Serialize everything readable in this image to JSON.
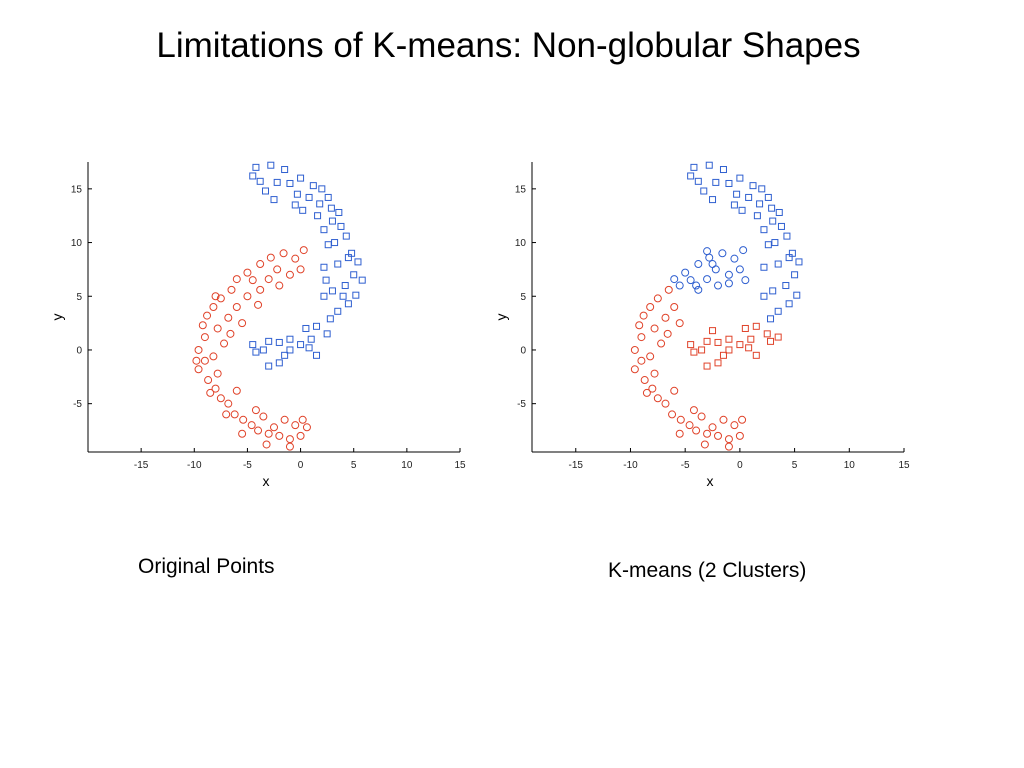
{
  "slide": {
    "title": "Limitations of K-means: Non-globular Shapes",
    "caption_left": "Original Points",
    "caption_right": "K-means (2 Clusters)"
  },
  "colors": {
    "cluster_a": "#2f5fd0",
    "cluster_b": "#e0432a",
    "axis": "#000000"
  },
  "chart_data": [
    {
      "type": "scatter",
      "title": "",
      "xlabel": "x",
      "ylabel": "y",
      "xlim": [
        -20,
        15
      ],
      "ylim": [
        -9.5,
        17.5
      ],
      "xticks": [
        -15,
        -10,
        -5,
        0,
        5,
        10,
        15
      ],
      "yticks": [
        -5,
        0,
        5,
        10,
        15
      ],
      "grid": false,
      "legend": "none",
      "series": [
        {
          "marker": "square",
          "color": "#2f5fd0",
          "values": [
            [
              -4.2,
              17.0
            ],
            [
              -2.8,
              17.2
            ],
            [
              -1.5,
              16.8
            ],
            [
              -3.8,
              15.7
            ],
            [
              -3.3,
              14.8
            ],
            [
              -2.2,
              15.6
            ],
            [
              -1.0,
              15.5
            ],
            [
              -4.5,
              16.2
            ],
            [
              0.0,
              16.0
            ],
            [
              1.2,
              15.3
            ],
            [
              2.0,
              15.0
            ],
            [
              -0.3,
              14.5
            ],
            [
              0.8,
              14.2
            ],
            [
              1.8,
              13.6
            ],
            [
              2.6,
              14.2
            ],
            [
              2.9,
              13.2
            ],
            [
              0.2,
              13.0
            ],
            [
              3.0,
              12.0
            ],
            [
              3.8,
              11.5
            ],
            [
              2.2,
              11.2
            ],
            [
              4.3,
              10.6
            ],
            [
              3.2,
              10.0
            ],
            [
              2.6,
              9.8
            ],
            [
              4.8,
              9.0
            ],
            [
              5.4,
              8.2
            ],
            [
              3.5,
              8.0
            ],
            [
              2.2,
              7.7
            ],
            [
              5.0,
              7.0
            ],
            [
              4.2,
              6.0
            ],
            [
              3.0,
              5.5
            ],
            [
              5.2,
              5.1
            ],
            [
              2.2,
              5.0
            ],
            [
              4.5,
              4.3
            ],
            [
              3.5,
              3.6
            ],
            [
              2.8,
              2.9
            ],
            [
              1.5,
              2.2
            ],
            [
              2.5,
              1.5
            ],
            [
              1.0,
              1.0
            ],
            [
              0.0,
              0.5
            ],
            [
              -1.0,
              1.0
            ],
            [
              -2.0,
              0.7
            ],
            [
              -3.0,
              0.8
            ],
            [
              -4.2,
              -0.2
            ],
            [
              -2.0,
              -1.2
            ],
            [
              -3.0,
              -1.5
            ],
            [
              -1.0,
              0.0
            ],
            [
              0.8,
              0.2
            ],
            [
              -4.5,
              0.5
            ],
            [
              -3.5,
              0.0
            ],
            [
              1.5,
              -0.5
            ],
            [
              4.0,
              5.0
            ],
            [
              5.8,
              6.5
            ],
            [
              -0.5,
              13.5
            ],
            [
              1.6,
              12.5
            ],
            [
              -2.5,
              14.0
            ],
            [
              3.6,
              12.8
            ],
            [
              4.5,
              8.6
            ],
            [
              2.4,
              6.5
            ],
            [
              0.5,
              2.0
            ],
            [
              -1.5,
              -0.5
            ]
          ]
        },
        {
          "marker": "circle",
          "color": "#e0432a",
          "values": [
            [
              0.3,
              9.3
            ],
            [
              -0.5,
              8.5
            ],
            [
              -1.6,
              9.0
            ],
            [
              -2.8,
              8.6
            ],
            [
              -3.8,
              8.0
            ],
            [
              -5.0,
              7.2
            ],
            [
              -6.0,
              6.6
            ],
            [
              -6.5,
              5.6
            ],
            [
              -7.5,
              4.8
            ],
            [
              -8.2,
              4.0
            ],
            [
              -8.8,
              3.2
            ],
            [
              -9.2,
              2.3
            ],
            [
              -9.0,
              1.2
            ],
            [
              -9.6,
              0.0
            ],
            [
              -9.0,
              -1.0
            ],
            [
              -9.6,
              -1.8
            ],
            [
              -8.7,
              -2.8
            ],
            [
              -8.0,
              -3.6
            ],
            [
              -7.5,
              -4.5
            ],
            [
              -6.8,
              -5.0
            ],
            [
              -6.2,
              -6.0
            ],
            [
              -5.4,
              -6.5
            ],
            [
              -4.6,
              -7.0
            ],
            [
              -4.0,
              -7.5
            ],
            [
              -3.0,
              -7.8
            ],
            [
              -2.0,
              -8.0
            ],
            [
              -1.0,
              -8.3
            ],
            [
              0.0,
              -8.0
            ],
            [
              -0.5,
              -7.0
            ],
            [
              -1.5,
              -6.5
            ],
            [
              -3.5,
              -6.2
            ],
            [
              -2.5,
              -7.2
            ],
            [
              0.2,
              -6.5
            ],
            [
              -4.2,
              -5.6
            ],
            [
              -6.0,
              -3.8
            ],
            [
              -7.8,
              -2.2
            ],
            [
              -8.2,
              -0.6
            ],
            [
              -7.2,
              0.6
            ],
            [
              -7.8,
              2.0
            ],
            [
              -6.8,
              3.0
            ],
            [
              -6.0,
              4.0
            ],
            [
              -5.0,
              5.0
            ],
            [
              -3.8,
              5.6
            ],
            [
              -3.0,
              6.6
            ],
            [
              -2.2,
              7.5
            ],
            [
              -1.0,
              7.0
            ],
            [
              -4.5,
              6.5
            ],
            [
              -5.5,
              2.5
            ],
            [
              -6.6,
              1.5
            ],
            [
              -4.0,
              4.2
            ],
            [
              -2.0,
              6.0
            ],
            [
              0.0,
              7.5
            ],
            [
              -8.5,
              -4.0
            ],
            [
              -5.5,
              -7.8
            ],
            [
              -1.0,
              -9.0
            ],
            [
              -3.2,
              -8.8
            ],
            [
              -7.0,
              -6.0
            ],
            [
              -9.8,
              -1.0
            ],
            [
              -8.0,
              5.0
            ],
            [
              0.6,
              -7.2
            ]
          ]
        }
      ]
    },
    {
      "type": "scatter",
      "title": "",
      "xlabel": "x",
      "ylabel": "y",
      "xlim": [
        -19,
        15
      ],
      "ylim": [
        -9.5,
        17.5
      ],
      "xticks": [
        -15,
        -10,
        -5,
        0,
        5,
        10,
        15
      ],
      "yticks": [
        -5,
        0,
        5,
        10,
        15
      ],
      "grid": false,
      "legend": "none",
      "series": [
        {
          "marker": "square",
          "color": "#2f5fd0",
          "values": [
            [
              -4.2,
              17.0
            ],
            [
              -2.8,
              17.2
            ],
            [
              -1.5,
              16.8
            ],
            [
              -3.8,
              15.7
            ],
            [
              -3.3,
              14.8
            ],
            [
              -2.2,
              15.6
            ],
            [
              -1.0,
              15.5
            ],
            [
              -4.5,
              16.2
            ],
            [
              0.0,
              16.0
            ],
            [
              1.2,
              15.3
            ],
            [
              2.0,
              15.0
            ],
            [
              -0.3,
              14.5
            ],
            [
              0.8,
              14.2
            ],
            [
              1.8,
              13.6
            ],
            [
              2.6,
              14.2
            ],
            [
              2.9,
              13.2
            ],
            [
              0.2,
              13.0
            ],
            [
              3.0,
              12.0
            ],
            [
              3.8,
              11.5
            ],
            [
              2.2,
              11.2
            ],
            [
              4.3,
              10.6
            ],
            [
              3.2,
              10.0
            ],
            [
              2.6,
              9.8
            ],
            [
              4.8,
              9.0
            ],
            [
              5.4,
              8.2
            ],
            [
              3.5,
              8.0
            ],
            [
              2.2,
              7.7
            ],
            [
              5.0,
              7.0
            ],
            [
              4.2,
              6.0
            ],
            [
              3.0,
              5.5
            ],
            [
              5.2,
              5.1
            ],
            [
              2.2,
              5.0
            ],
            [
              4.5,
              4.3
            ],
            [
              3.5,
              3.6
            ],
            [
              2.8,
              2.9
            ],
            [
              -0.5,
              13.5
            ],
            [
              1.6,
              12.5
            ],
            [
              -2.5,
              14.0
            ],
            [
              3.6,
              12.8
            ],
            [
              4.5,
              8.6
            ]
          ]
        },
        {
          "marker": "circle",
          "color": "#2f5fd0",
          "values": [
            [
              0.3,
              9.3
            ],
            [
              -0.5,
              8.5
            ],
            [
              -1.6,
              9.0
            ],
            [
              -2.8,
              8.6
            ],
            [
              -3.8,
              8.0
            ],
            [
              -5.0,
              7.2
            ],
            [
              -6.0,
              6.6
            ],
            [
              -4.5,
              6.5
            ],
            [
              -3.0,
              6.6
            ],
            [
              -2.2,
              7.5
            ],
            [
              -1.0,
              7.0
            ],
            [
              -3.8,
              5.6
            ],
            [
              -2.0,
              6.0
            ],
            [
              0.0,
              7.5
            ],
            [
              -4.0,
              6.0
            ],
            [
              -1.0,
              6.2
            ],
            [
              -2.5,
              8.0
            ],
            [
              -5.5,
              6.0
            ],
            [
              0.5,
              6.5
            ],
            [
              -3.0,
              9.2
            ]
          ]
        },
        {
          "marker": "square",
          "color": "#e0432a",
          "values": [
            [
              1.5,
              2.2
            ],
            [
              2.5,
              1.5
            ],
            [
              1.0,
              1.0
            ],
            [
              0.0,
              0.5
            ],
            [
              -1.0,
              1.0
            ],
            [
              -2.0,
              0.7
            ],
            [
              -3.0,
              0.8
            ],
            [
              -4.2,
              -0.2
            ],
            [
              -2.0,
              -1.2
            ],
            [
              -3.0,
              -1.5
            ],
            [
              -1.0,
              0.0
            ],
            [
              0.8,
              0.2
            ],
            [
              -4.5,
              0.5
            ],
            [
              -3.5,
              0.0
            ],
            [
              1.5,
              -0.5
            ],
            [
              0.5,
              2.0
            ],
            [
              -1.5,
              -0.5
            ],
            [
              2.8,
              0.8
            ],
            [
              -2.5,
              1.8
            ],
            [
              3.5,
              1.2
            ]
          ]
        },
        {
          "marker": "circle",
          "color": "#e0432a",
          "values": [
            [
              -6.5,
              5.6
            ],
            [
              -7.5,
              4.8
            ],
            [
              -8.2,
              4.0
            ],
            [
              -8.8,
              3.2
            ],
            [
              -9.2,
              2.3
            ],
            [
              -9.0,
              1.2
            ],
            [
              -9.6,
              0.0
            ],
            [
              -9.0,
              -1.0
            ],
            [
              -9.6,
              -1.8
            ],
            [
              -8.7,
              -2.8
            ],
            [
              -8.0,
              -3.6
            ],
            [
              -7.5,
              -4.5
            ],
            [
              -6.8,
              -5.0
            ],
            [
              -6.2,
              -6.0
            ],
            [
              -5.4,
              -6.5
            ],
            [
              -4.6,
              -7.0
            ],
            [
              -4.0,
              -7.5
            ],
            [
              -3.0,
              -7.8
            ],
            [
              -2.0,
              -8.0
            ],
            [
              -1.0,
              -8.3
            ],
            [
              0.0,
              -8.0
            ],
            [
              -0.5,
              -7.0
            ],
            [
              -1.5,
              -6.5
            ],
            [
              -3.5,
              -6.2
            ],
            [
              -2.5,
              -7.2
            ],
            [
              0.2,
              -6.5
            ],
            [
              -4.2,
              -5.6
            ],
            [
              -6.0,
              -3.8
            ],
            [
              -7.8,
              -2.2
            ],
            [
              -8.2,
              -0.6
            ],
            [
              -7.2,
              0.6
            ],
            [
              -7.8,
              2.0
            ],
            [
              -6.8,
              3.0
            ],
            [
              -6.0,
              4.0
            ],
            [
              -5.5,
              2.5
            ],
            [
              -6.6,
              1.5
            ],
            [
              -8.5,
              -4.0
            ],
            [
              -5.5,
              -7.8
            ],
            [
              -1.0,
              -9.0
            ],
            [
              -3.2,
              -8.8
            ]
          ]
        }
      ]
    }
  ]
}
